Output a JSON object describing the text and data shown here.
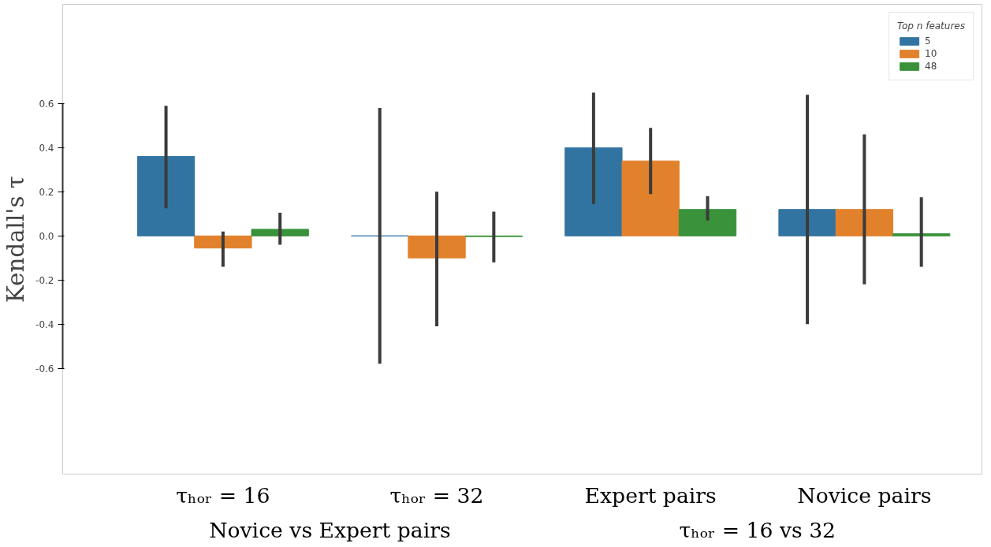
{
  "chart_data": {
    "type": "bar",
    "categories": [
      "τₕₒᵣ = 16",
      "τₕₒᵣ = 32",
      "Expert pairs",
      "Novice pairs"
    ],
    "annotations": [
      {
        "text": "Novice vs Expert pairs"
      },
      {
        "text": "τₕₒᵣ = 16 vs 32"
      }
    ],
    "ylabel": "Kendall's τ",
    "legend_title": "Top n features",
    "series": [
      {
        "name": "5",
        "color": "#3274a1",
        "values": [
          0.36,
          0.0,
          0.4,
          0.12
        ],
        "errors": [
          [
            0.125,
            0.59
          ],
          [
            -0.58,
            0.58
          ],
          [
            0.145,
            0.65
          ],
          [
            -0.4,
            0.64
          ]
        ]
      },
      {
        "name": "10",
        "color": "#e1812c",
        "values": [
          -0.055,
          -0.1,
          0.34,
          0.12
        ],
        "errors": [
          [
            -0.14,
            0.02
          ],
          [
            -0.41,
            0.2
          ],
          [
            0.19,
            0.49
          ],
          [
            -0.22,
            0.46
          ]
        ]
      },
      {
        "name": "48",
        "color": "#3a923a",
        "values": [
          0.03,
          -0.003,
          0.12,
          0.01
        ],
        "errors": [
          [
            -0.04,
            0.105
          ],
          [
            -0.12,
            0.11
          ],
          [
            0.07,
            0.18
          ],
          [
            -0.14,
            0.175
          ]
        ]
      }
    ],
    "ylim": [
      -1.08,
      1.05
    ],
    "yticks": [
      -0.6,
      -0.4,
      -0.2,
      {
        "value": 0,
        "label": "0.0"
      },
      0.2,
      0.4,
      0.6
    ],
    "grid": false,
    "legend": "top right"
  }
}
